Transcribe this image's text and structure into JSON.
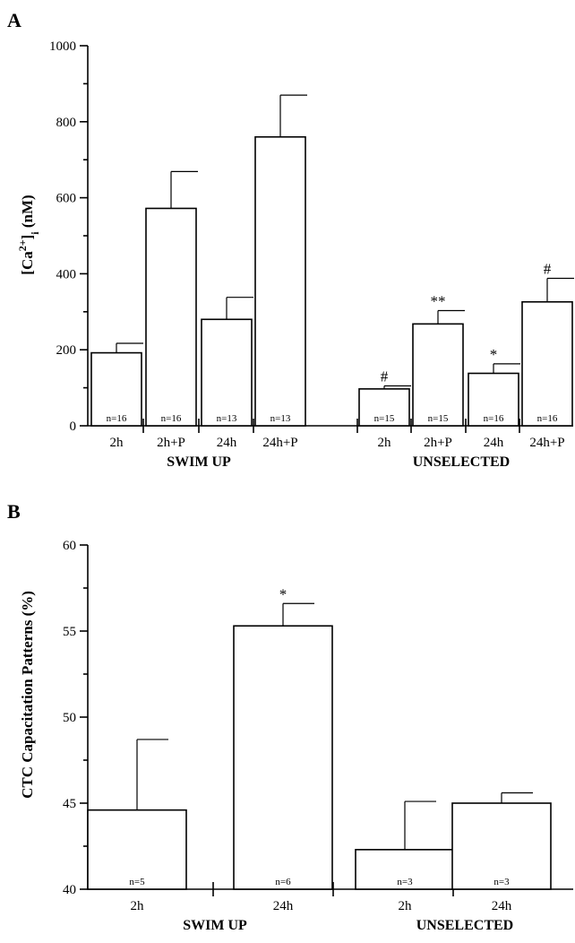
{
  "chart_data": [
    {
      "type": "bar",
      "panel_label": "A",
      "ylabel": "[Ca2+]i (nM)",
      "ylabel_parts": {
        "base": "[Ca",
        "sup": "2+",
        "mid": "]",
        "sub": "i",
        "tail": " (nM)"
      },
      "ylim": [
        0,
        1000
      ],
      "yticks": [
        0,
        200,
        400,
        600,
        800,
        1000
      ],
      "grid": false,
      "groups": [
        {
          "name": "SWIM UP",
          "categories": [
            "2h",
            "2h+P",
            "24h",
            "24h+P"
          ],
          "values": [
            192,
            572,
            280,
            760
          ],
          "errors": [
            25,
            97,
            58,
            110
          ],
          "n": [
            "n=16",
            "n=16",
            "n=13",
            "n=13"
          ],
          "annotations": [
            "",
            "",
            "",
            ""
          ]
        },
        {
          "name": "UNSELECTED",
          "categories": [
            "2h",
            "2h+P",
            "24h",
            "24h+P"
          ],
          "values": [
            97,
            268,
            138,
            326
          ],
          "errors": [
            8,
            35,
            25,
            62
          ],
          "n": [
            "n=15",
            "n=15",
            "n=16",
            "n=16"
          ],
          "annotations": [
            "#",
            "**",
            "*",
            "#"
          ]
        }
      ]
    },
    {
      "type": "bar",
      "panel_label": "B",
      "ylabel": "CTC Capacitation Patterns (%)",
      "ylim": [
        40,
        60
      ],
      "yticks": [
        40,
        45,
        50,
        55,
        60
      ],
      "grid": false,
      "groups": [
        {
          "name": "SWIM UP",
          "categories": [
            "2h",
            "24h"
          ],
          "values": [
            44.6,
            55.3
          ],
          "errors": [
            4.1,
            1.3
          ],
          "n": [
            "n=5",
            "n=6"
          ],
          "annotations": [
            "",
            "*"
          ]
        },
        {
          "name": "UNSELECTED",
          "categories": [
            "2h",
            "24h"
          ],
          "values": [
            42.3,
            45.0
          ],
          "errors": [
            2.8,
            0.6
          ],
          "n": [
            "n=3",
            "n=3"
          ],
          "annotations": [
            "",
            ""
          ]
        }
      ]
    }
  ]
}
